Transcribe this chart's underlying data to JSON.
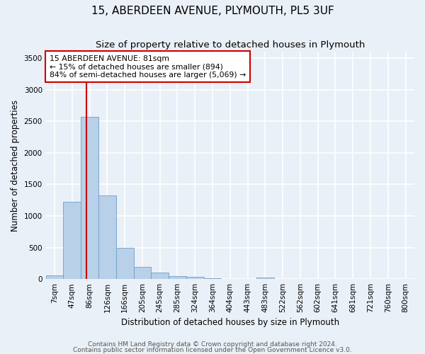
{
  "title": "15, ABERDEEN AVENUE, PLYMOUTH, PL5 3UF",
  "subtitle": "Size of property relative to detached houses in Plymouth",
  "xlabel": "Distribution of detached houses by size in Plymouth",
  "ylabel": "Number of detached properties",
  "bar_color": "#b8d0e8",
  "bar_edge_color": "#6ca0c8",
  "categories": [
    "7sqm",
    "47sqm",
    "86sqm",
    "126sqm",
    "166sqm",
    "205sqm",
    "245sqm",
    "285sqm",
    "324sqm",
    "364sqm",
    "404sqm",
    "443sqm",
    "483sqm",
    "522sqm",
    "562sqm",
    "602sqm",
    "641sqm",
    "681sqm",
    "721sqm",
    "760sqm",
    "800sqm"
  ],
  "values": [
    55,
    1220,
    2570,
    1330,
    500,
    190,
    105,
    50,
    35,
    10,
    5,
    5,
    30,
    0,
    0,
    0,
    0,
    0,
    0,
    0,
    0
  ],
  "ylim": [
    0,
    3600
  ],
  "yticks": [
    0,
    500,
    1000,
    1500,
    2000,
    2500,
    3000,
    3500
  ],
  "vline_color": "#cc0000",
  "vline_x_data": 1.82,
  "annotation_text": "15 ABERDEEN AVENUE: 81sqm\n← 15% of detached houses are smaller (894)\n84% of semi-detached houses are larger (5,069) →",
  "annotation_box_color": "#ffffff",
  "annotation_box_edge": "#cc0000",
  "footer1": "Contains HM Land Registry data © Crown copyright and database right 2024.",
  "footer2": "Contains public sector information licensed under the Open Government Licence v3.0.",
  "bg_color": "#eaf0f8",
  "plot_bg_color": "#eaf0f8",
  "grid_color": "#ffffff",
  "title_fontsize": 11,
  "subtitle_fontsize": 9.5,
  "axis_label_fontsize": 8.5,
  "tick_fontsize": 7.5,
  "footer_fontsize": 6.5
}
